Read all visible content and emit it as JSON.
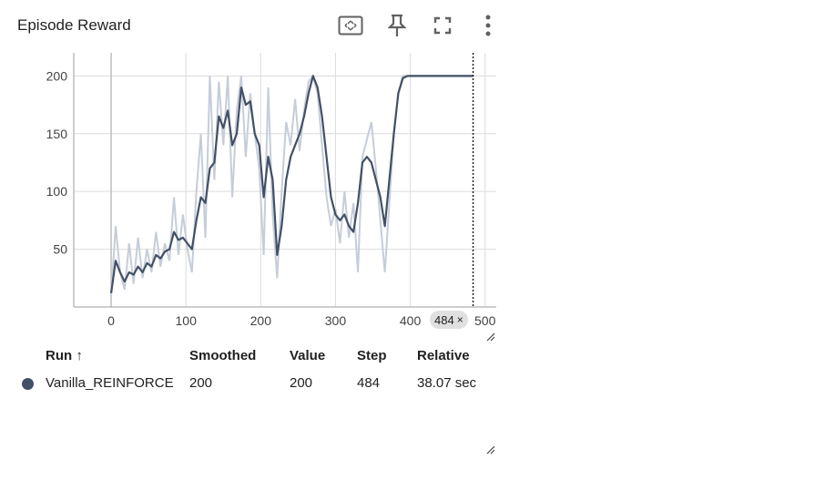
{
  "card": {
    "title": "Episode Reward",
    "toolbar": {
      "icons": [
        "fit-domain-icon",
        "pin-icon",
        "fullscreen-icon",
        "more-vert-icon"
      ]
    }
  },
  "step_chip": {
    "label": "484",
    "close": "×"
  },
  "table": {
    "headers": {
      "run": "Run ↑",
      "smoothed": "Smoothed",
      "value": "Value",
      "step": "Step",
      "relative": "Relative"
    },
    "rows": [
      {
        "color": "#425066",
        "run": "Vanilla_REINFORCE",
        "smoothed": "200",
        "value": "200",
        "step": "484",
        "relative": "38.07 sec"
      }
    ]
  },
  "chart_data": {
    "type": "line",
    "title": "Episode Reward",
    "xlabel": "",
    "ylabel": "",
    "xlim": [
      -50,
      515
    ],
    "ylim": [
      0,
      220
    ],
    "x_ticks": [
      0,
      100,
      200,
      300,
      400,
      500
    ],
    "y_ticks": [
      50,
      100,
      150,
      200
    ],
    "grid": true,
    "cursor_step": 484,
    "colors": {
      "raw": "#c6cdd9",
      "smoothed": "#425066",
      "grid": "#dcdcdc"
    },
    "series": [
      {
        "name": "Vanilla_REINFORCE",
        "x": [
          0,
          6,
          12,
          18,
          24,
          30,
          36,
          42,
          48,
          54,
          60,
          66,
          72,
          78,
          84,
          90,
          96,
          102,
          108,
          114,
          120,
          126,
          132,
          138,
          144,
          150,
          156,
          162,
          168,
          174,
          180,
          186,
          192,
          198,
          204,
          210,
          216,
          222,
          228,
          234,
          240,
          246,
          252,
          258,
          264,
          270,
          276,
          282,
          288,
          294,
          300,
          306,
          312,
          318,
          324,
          330,
          336,
          342,
          348,
          354,
          360,
          366,
          372,
          378,
          384,
          390,
          396,
          402,
          408,
          414,
          420,
          426,
          432,
          438,
          444,
          450,
          456,
          462,
          468,
          474,
          480,
          484
        ],
        "raw": [
          10,
          70,
          30,
          15,
          55,
          20,
          60,
          25,
          50,
          30,
          65,
          35,
          55,
          40,
          95,
          45,
          80,
          50,
          30,
          100,
          150,
          60,
          200,
          110,
          195,
          140,
          200,
          95,
          170,
          200,
          130,
          185,
          150,
          120,
          45,
          190,
          80,
          25,
          100,
          160,
          140,
          180,
          135,
          170,
          195,
          200,
          185,
          140,
          95,
          70,
          85,
          55,
          100,
          60,
          90,
          30,
          130,
          145,
          160,
          120,
          75,
          30,
          90,
          150,
          185,
          200,
          200,
          200,
          200,
          200,
          200,
          200,
          200,
          200,
          200,
          200,
          200,
          200,
          200,
          200,
          200,
          200
        ],
        "smoothed": [
          12,
          40,
          30,
          22,
          30,
          28,
          35,
          30,
          38,
          35,
          45,
          42,
          48,
          50,
          65,
          58,
          60,
          55,
          50,
          75,
          95,
          90,
          120,
          125,
          165,
          155,
          170,
          140,
          150,
          190,
          175,
          178,
          150,
          140,
          95,
          130,
          110,
          45,
          70,
          110,
          130,
          140,
          150,
          165,
          185,
          200,
          190,
          165,
          130,
          95,
          80,
          75,
          80,
          70,
          65,
          90,
          125,
          130,
          125,
          110,
          95,
          70,
          110,
          150,
          185,
          198,
          200,
          200,
          200,
          200,
          200,
          200,
          200,
          200,
          200,
          200,
          200,
          200,
          200,
          200,
          200,
          200
        ]
      }
    ]
  }
}
